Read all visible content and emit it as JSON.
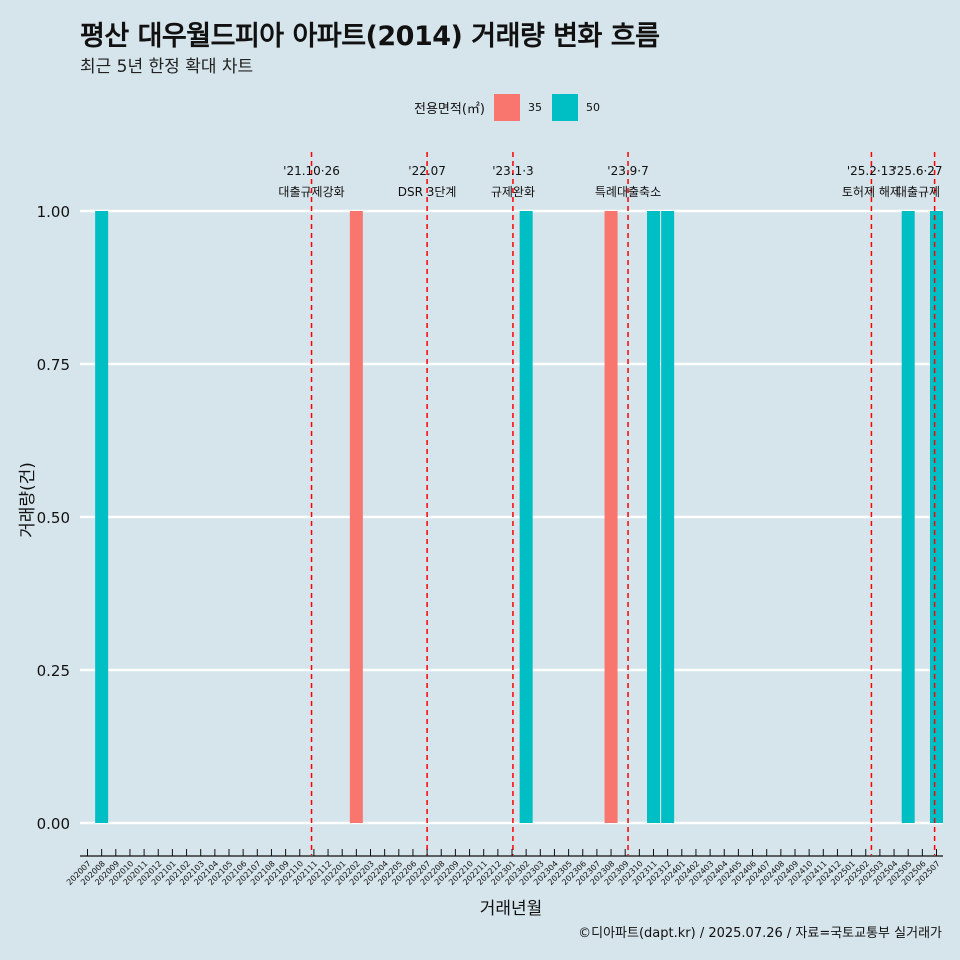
{
  "title": "평산 대우월드피아 아파트(2014) 거래량 변화 흐름",
  "subtitle": "최근 5년 한정 확대 차트",
  "caption": "©디아파트(dapt.kr) / 2025.07.26 / 자료=국토교통부 실거래가",
  "colors": {
    "background": "#d6e4eb",
    "series_35": "#f8766d",
    "series_50": "#00bfc4",
    "event_line": "#ff0000",
    "gridline": "#ffffff"
  },
  "chart_data": {
    "type": "bar",
    "xlabel": "거래년월",
    "ylabel": "거래량(건)",
    "ylim": [
      0,
      1
    ],
    "y_ticks": [
      "0.00",
      "0.25",
      "0.50",
      "0.75",
      "1.00"
    ],
    "grid": true,
    "legend": {
      "title": "전용면적(㎡)",
      "placement": "top"
    },
    "categories": [
      "202007",
      "202008",
      "202009",
      "202010",
      "202011",
      "202012",
      "202101",
      "202102",
      "202103",
      "202104",
      "202105",
      "202106",
      "202107",
      "202108",
      "202109",
      "202110",
      "202111",
      "202112",
      "202201",
      "202202",
      "202203",
      "202204",
      "202205",
      "202206",
      "202207",
      "202208",
      "202209",
      "202210",
      "202211",
      "202212",
      "202301",
      "202302",
      "202303",
      "202304",
      "202305",
      "202306",
      "202307",
      "202308",
      "202309",
      "202310",
      "202311",
      "202312",
      "202401",
      "202402",
      "202403",
      "202404",
      "202405",
      "202406",
      "202407",
      "202408",
      "202409",
      "202410",
      "202411",
      "202412",
      "202501",
      "202502",
      "202503",
      "202504",
      "202505",
      "202506",
      "202507"
    ],
    "series": [
      {
        "name": "35",
        "color": "#f8766d",
        "points": [
          {
            "x": "202202",
            "y": 1
          },
          {
            "x": "202308",
            "y": 1
          }
        ]
      },
      {
        "name": "50",
        "color": "#00bfc4",
        "points": [
          {
            "x": "202008",
            "y": 1
          },
          {
            "x": "202302",
            "y": 1
          },
          {
            "x": "202311",
            "y": 1
          },
          {
            "x": "202312",
            "y": 1
          },
          {
            "x": "202505",
            "y": 1
          },
          {
            "x": "202507",
            "y": 1
          }
        ]
      }
    ],
    "annotations": [
      {
        "date_label": "'21.10·26",
        "text": "대출규제강화",
        "month": "202110",
        "day": 26
      },
      {
        "date_label": "'22.07",
        "text": "DSR 3단계",
        "month": "202207",
        "day": 1
      },
      {
        "date_label": "'23.1·3",
        "text": "규제완화",
        "month": "202301",
        "day": 3
      },
      {
        "date_label": "'23.9·7",
        "text": "특례대출축소",
        "month": "202309",
        "day": 7
      },
      {
        "date_label": "'25.2·13",
        "text": "토허제 해제",
        "month": "202502",
        "day": 13
      },
      {
        "date_label": "'25.6·27",
        "text": "대출규제",
        "month": "202506",
        "day": 27
      }
    ]
  }
}
